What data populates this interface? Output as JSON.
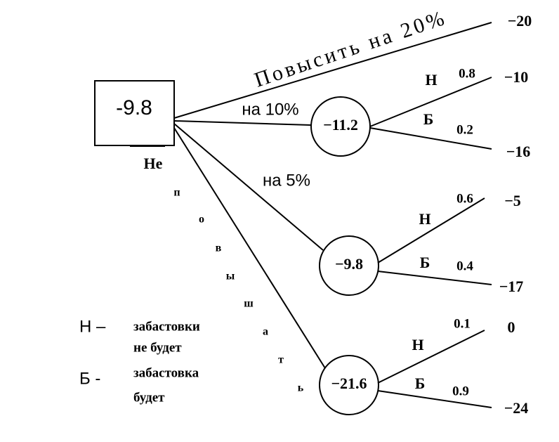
{
  "root": {
    "value": "-9.8"
  },
  "branches": {
    "raise_20": "Повысить на 20%",
    "raise_10": "на 10%",
    "raise_5": "на 5%",
    "no_raise": [
      "Не",
      "п",
      "о",
      "в",
      "ы",
      "ш",
      "а",
      "т",
      "ь"
    ]
  },
  "terminal_20": "−20",
  "nodes": [
    {
      "value": "−11.2",
      "outcomes": [
        {
          "label": "Н",
          "prob": "0.8",
          "payoff": "−10"
        },
        {
          "label": "Б",
          "prob": "0.2",
          "payoff": "−16"
        }
      ]
    },
    {
      "value": "−9.8",
      "outcomes": [
        {
          "label": "Н",
          "prob": "0.6",
          "payoff": "−5"
        },
        {
          "label": "Б",
          "prob": "0.4",
          "payoff": "−17"
        }
      ]
    },
    {
      "value": "−21.6",
      "outcomes": [
        {
          "label": "Н",
          "prob": "0.1",
          "payoff": "0"
        },
        {
          "label": "Б",
          "prob": "0.9",
          "payoff": "−24"
        }
      ]
    }
  ],
  "legend": [
    {
      "key": "Н –",
      "lines": [
        "забастовки",
        "не будет"
      ]
    },
    {
      "key": "Б -",
      "lines": [
        "забастовка",
        "будет"
      ]
    }
  ]
}
